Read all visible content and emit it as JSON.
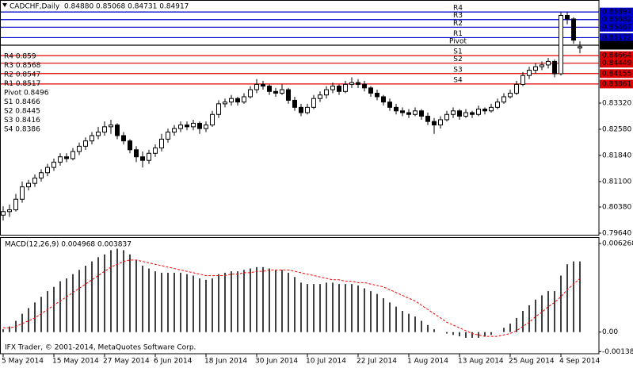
{
  "chart_data": [
    {
      "type": "candlestick",
      "title": "CADCHF,Daily  0.84880 0.85068 0.84731 0.84917",
      "categories": [
        "5 May 2014",
        null,
        null,
        null,
        null,
        null,
        null,
        null,
        "15 May 2014",
        null,
        null,
        null,
        null,
        null,
        null,
        null,
        "27 May 2014",
        null,
        null,
        null,
        null,
        null,
        null,
        null,
        "6 Jun 2014",
        null,
        null,
        null,
        null,
        null,
        null,
        null,
        "18 Jun 2014",
        null,
        null,
        null,
        null,
        null,
        null,
        null,
        "30 Jun 2014",
        null,
        null,
        null,
        null,
        null,
        null,
        null,
        "10 Jul 2014",
        null,
        null,
        null,
        null,
        null,
        null,
        null,
        "22 Jul 2014",
        null,
        null,
        null,
        null,
        null,
        null,
        null,
        "1 Aug 2014",
        null,
        null,
        null,
        null,
        null,
        null,
        null,
        "13 Aug 2014",
        null,
        null,
        null,
        null,
        null,
        null,
        null,
        "25 Aug 2014",
        null,
        null,
        null,
        null,
        null,
        null,
        null,
        "4 Sep 2014",
        null,
        null,
        null
      ],
      "ohlc": [
        [
          0.8015,
          0.804,
          0.8,
          0.8025
        ],
        [
          0.8025,
          0.8045,
          0.801,
          0.803
        ],
        [
          0.803,
          0.8075,
          0.8025,
          0.806
        ],
        [
          0.806,
          0.811,
          0.805,
          0.8095
        ],
        [
          0.8095,
          0.8115,
          0.8085,
          0.8105
        ],
        [
          0.8105,
          0.813,
          0.8095,
          0.812
        ],
        [
          0.812,
          0.8145,
          0.811,
          0.8135
        ],
        [
          0.8135,
          0.816,
          0.8125,
          0.815
        ],
        [
          0.815,
          0.8175,
          0.814,
          0.8165
        ],
        [
          0.8165,
          0.819,
          0.8155,
          0.818
        ],
        [
          0.818,
          0.819,
          0.8165,
          0.8175
        ],
        [
          0.8175,
          0.8205,
          0.817,
          0.8195
        ],
        [
          0.8195,
          0.822,
          0.8185,
          0.821
        ],
        [
          0.821,
          0.8235,
          0.82,
          0.8225
        ],
        [
          0.8225,
          0.825,
          0.8215,
          0.824
        ],
        [
          0.824,
          0.8265,
          0.823,
          0.825
        ],
        [
          0.825,
          0.828,
          0.824,
          0.8265
        ],
        [
          0.8265,
          0.8285,
          0.8245,
          0.827
        ],
        [
          0.827,
          0.8275,
          0.823,
          0.824
        ],
        [
          0.824,
          0.825,
          0.8215,
          0.8225
        ],
        [
          0.8225,
          0.823,
          0.819,
          0.82
        ],
        [
          0.82,
          0.821,
          0.8165,
          0.818
        ],
        [
          0.818,
          0.8195,
          0.815,
          0.817
        ],
        [
          0.817,
          0.82,
          0.816,
          0.819
        ],
        [
          0.819,
          0.8215,
          0.818,
          0.8205
        ],
        [
          0.8205,
          0.8245,
          0.8195,
          0.823
        ],
        [
          0.823,
          0.826,
          0.822,
          0.825
        ],
        [
          0.825,
          0.827,
          0.824,
          0.826
        ],
        [
          0.826,
          0.828,
          0.825,
          0.827
        ],
        [
          0.827,
          0.828,
          0.8255,
          0.8265
        ],
        [
          0.8265,
          0.8285,
          0.8255,
          0.8275
        ],
        [
          0.8275,
          0.828,
          0.8245,
          0.826
        ],
        [
          0.826,
          0.828,
          0.825,
          0.827
        ],
        [
          0.827,
          0.831,
          0.8265,
          0.83
        ],
        [
          0.83,
          0.834,
          0.829,
          0.833
        ],
        [
          0.833,
          0.8345,
          0.832,
          0.8335
        ],
        [
          0.8335,
          0.8355,
          0.8325,
          0.8345
        ],
        [
          0.8345,
          0.835,
          0.8325,
          0.8335
        ],
        [
          0.8335,
          0.836,
          0.833,
          0.835
        ],
        [
          0.835,
          0.838,
          0.8345,
          0.837
        ],
        [
          0.837,
          0.84,
          0.836,
          0.8385
        ],
        [
          0.8385,
          0.8395,
          0.837,
          0.838
        ],
        [
          0.838,
          0.8385,
          0.8355,
          0.8365
        ],
        [
          0.8365,
          0.8375,
          0.835,
          0.836
        ],
        [
          0.836,
          0.8385,
          0.8355,
          0.837
        ],
        [
          0.837,
          0.8375,
          0.833,
          0.834
        ],
        [
          0.834,
          0.835,
          0.831,
          0.832
        ],
        [
          0.832,
          0.833,
          0.8295,
          0.8305
        ],
        [
          0.8305,
          0.833,
          0.83,
          0.832
        ],
        [
          0.832,
          0.8355,
          0.8315,
          0.8345
        ],
        [
          0.8345,
          0.8365,
          0.8335,
          0.8355
        ],
        [
          0.8355,
          0.838,
          0.8345,
          0.837
        ],
        [
          0.837,
          0.839,
          0.836,
          0.838
        ],
        [
          0.838,
          0.8385,
          0.8355,
          0.8365
        ],
        [
          0.8365,
          0.8395,
          0.836,
          0.8385
        ],
        [
          0.8385,
          0.8405,
          0.8375,
          0.839
        ],
        [
          0.839,
          0.84,
          0.8375,
          0.8385
        ],
        [
          0.8385,
          0.8395,
          0.8365,
          0.8375
        ],
        [
          0.8375,
          0.838,
          0.835,
          0.836
        ],
        [
          0.836,
          0.837,
          0.834,
          0.835
        ],
        [
          0.835,
          0.8355,
          0.8325,
          0.8335
        ],
        [
          0.8335,
          0.8345,
          0.831,
          0.832
        ],
        [
          0.832,
          0.833,
          0.83,
          0.831
        ],
        [
          0.831,
          0.832,
          0.8295,
          0.8305
        ],
        [
          0.8305,
          0.8315,
          0.829,
          0.83
        ],
        [
          0.83,
          0.832,
          0.8295,
          0.831
        ],
        [
          0.831,
          0.8315,
          0.8285,
          0.8295
        ],
        [
          0.8295,
          0.8305,
          0.827,
          0.828
        ],
        [
          0.828,
          0.829,
          0.8245,
          0.827
        ],
        [
          0.827,
          0.8295,
          0.826,
          0.8285
        ],
        [
          0.8285,
          0.831,
          0.828,
          0.83
        ],
        [
          0.83,
          0.832,
          0.829,
          0.831
        ],
        [
          0.831,
          0.8315,
          0.8285,
          0.8295
        ],
        [
          0.8295,
          0.8315,
          0.829,
          0.8305
        ],
        [
          0.8305,
          0.831,
          0.829,
          0.83
        ],
        [
          0.83,
          0.8325,
          0.8295,
          0.8315
        ],
        [
          0.8315,
          0.832,
          0.83,
          0.831
        ],
        [
          0.831,
          0.833,
          0.8305,
          0.832
        ],
        [
          0.832,
          0.8345,
          0.8315,
          0.8335
        ],
        [
          0.8335,
          0.836,
          0.833,
          0.835
        ],
        [
          0.835,
          0.837,
          0.8345,
          0.836
        ],
        [
          0.836,
          0.8395,
          0.8355,
          0.8385
        ],
        [
          0.8385,
          0.842,
          0.838,
          0.841
        ],
        [
          0.841,
          0.8435,
          0.84,
          0.8425
        ],
        [
          0.8425,
          0.8445,
          0.8415,
          0.8435
        ],
        [
          0.8435,
          0.845,
          0.8425,
          0.844
        ],
        [
          0.844,
          0.846,
          0.843,
          0.845
        ],
        [
          0.845,
          0.8455,
          0.8405,
          0.8415
        ],
        [
          0.8415,
          0.859,
          0.841,
          0.858
        ],
        [
          0.858,
          0.859,
          0.8555,
          0.857
        ],
        [
          0.857,
          0.8575,
          0.85,
          0.851
        ],
        [
          0.8488,
          0.85068,
          0.84731,
          0.84917
        ]
      ],
      "bull_color": "#ffffff",
      "bear_color": "#000000",
      "outline_color": "#000000",
      "ylim": [
        0.79595,
        0.86237
      ],
      "yticks": [
        {
          "value": 0.7964,
          "label": "0.79640"
        },
        {
          "value": 0.8038,
          "label": "0.80380"
        },
        {
          "value": 0.811,
          "label": "0.81100"
        },
        {
          "value": 0.8184,
          "label": "0.81840"
        },
        {
          "value": 0.8258,
          "label": "0.82580"
        },
        {
          "value": 0.8332,
          "label": "0.83320"
        }
      ],
      "grid": false,
      "levels": [
        {
          "name": "R4",
          "value": 0.85897,
          "color": "#0000cc"
        },
        {
          "name": "R3",
          "value": 0.85682,
          "color": "#0000cc"
        },
        {
          "name": "R2",
          "value": 0.85467,
          "color": "#0000cc"
        },
        {
          "name": "R1",
          "value": 0.85172,
          "color": "#0000cc"
        },
        {
          "name": "Pivot",
          "value": 0.84958,
          "color": "#000000"
        },
        {
          "name": "S1",
          "value": 0.84664,
          "color": "#dd0000"
        },
        {
          "name": "S2",
          "value": 0.84449,
          "color": "#dd0000"
        },
        {
          "name": "S3",
          "value": 0.84155,
          "color": "#dd0000"
        },
        {
          "name": "S4",
          "value": 0.83861,
          "color": "#dd0000"
        }
      ],
      "annotations": [
        "R4 0.859",
        "R3 0.8568",
        "R2 0.8547",
        "R1 0.8517",
        "Pivot 0.8496",
        "S1 0.8466",
        "S2 0.8445",
        "S3 0.8416",
        "S4 0.8386"
      ]
    },
    {
      "type": "macd",
      "title": "MACD(12,26,9) 0.004968 0.003837",
      "color": "#000000",
      "values": [
        0.0002,
        0.0004,
        0.0008,
        0.0013,
        0.0017,
        0.0021,
        0.0025,
        0.0029,
        0.0032,
        0.0036,
        0.0038,
        0.0041,
        0.0044,
        0.0047,
        0.005,
        0.0053,
        0.0055,
        0.0058,
        0.0059,
        0.0058,
        0.0055,
        0.0051,
        0.0047,
        0.0045,
        0.0043,
        0.0042,
        0.0042,
        0.0042,
        0.0042,
        0.0041,
        0.004,
        0.0038,
        0.0037,
        0.0038,
        0.0041,
        0.0042,
        0.0043,
        0.0043,
        0.0044,
        0.0045,
        0.0046,
        0.0046,
        0.0045,
        0.0044,
        0.0044,
        0.0042,
        0.0039,
        0.0035,
        0.0034,
        0.0034,
        0.0034,
        0.0035,
        0.0035,
        0.0034,
        0.0034,
        0.0034,
        0.0033,
        0.0031,
        0.0029,
        0.0027,
        0.0024,
        0.0021,
        0.0018,
        0.0015,
        0.0013,
        0.0011,
        0.0008,
        0.0005,
        0.0002,
        0.0,
        -0.0001,
        -0.0002,
        -0.0003,
        -0.0004,
        -0.0004,
        -0.0004,
        -0.0003,
        -0.0002,
        0.0,
        0.0003,
        0.0006,
        0.001,
        0.0015,
        0.0019,
        0.0023,
        0.0026,
        0.0029,
        0.0029,
        0.004,
        0.0048,
        0.005,
        0.005
      ],
      "signal_color": "#ff0000",
      "signal_values": [
        0.0003,
        0.0003,
        0.0004,
        0.0006,
        0.0008,
        0.001,
        0.0013,
        0.0016,
        0.0019,
        0.0022,
        0.0025,
        0.0028,
        0.0031,
        0.0034,
        0.0037,
        0.004,
        0.0043,
        0.0046,
        0.0048,
        0.005,
        0.0051,
        0.0051,
        0.005,
        0.0049,
        0.0048,
        0.0047,
        0.0046,
        0.0045,
        0.0044,
        0.0043,
        0.0042,
        0.0041,
        0.004,
        0.004,
        0.004,
        0.004,
        0.0041,
        0.0041,
        0.0042,
        0.0042,
        0.0043,
        0.0043,
        0.0044,
        0.0044,
        0.0044,
        0.0044,
        0.0043,
        0.0042,
        0.0041,
        0.004,
        0.0039,
        0.0038,
        0.0037,
        0.0037,
        0.0036,
        0.0036,
        0.0035,
        0.0035,
        0.0034,
        0.0033,
        0.0032,
        0.003,
        0.0028,
        0.0026,
        0.0024,
        0.0022,
        0.0019,
        0.0016,
        0.0013,
        0.001,
        0.0007,
        0.0005,
        0.0003,
        0.0001,
        -0.0001,
        -0.0002,
        -0.0003,
        -0.0003,
        -0.0003,
        -0.0002,
        -0.0001,
        0.0001,
        0.0004,
        0.0007,
        0.0011,
        0.0014,
        0.0018,
        0.0021,
        0.0025,
        0.003,
        0.0034,
        0.0038
      ],
      "ylim": [
        -0.00153,
        0.00672
      ],
      "yticks": [
        -0.001381,
        {
          "value": 0,
          "label": "0.00"
        },
        0.006268
      ],
      "annotation": "IFX Trader, © 2001-2014, MetaQuotes Software Corp."
    }
  ]
}
